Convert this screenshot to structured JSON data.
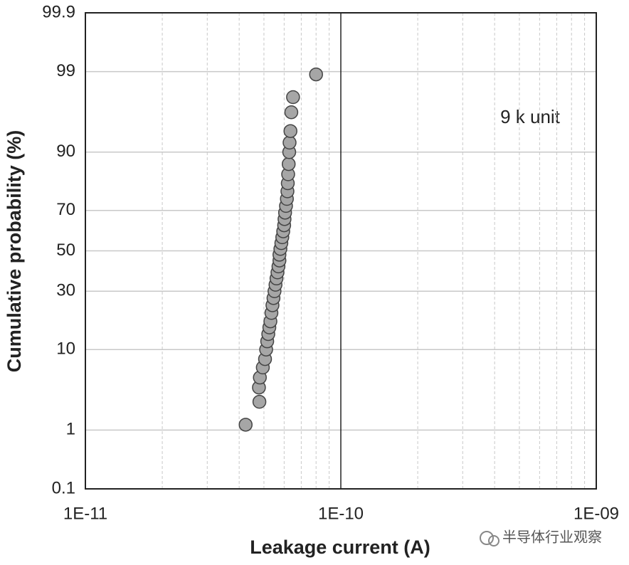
{
  "chart_data": {
    "type": "scatter",
    "xlabel": "Leakage current (A)",
    "ylabel": "Cumulative probability (%)",
    "annotation": "9 k unit",
    "watermark": "半导体行业观察",
    "xscale": "log",
    "yscale": "probability",
    "xlim": [
      1e-11,
      1e-09
    ],
    "xticks": [
      {
        "value": 1e-11,
        "label": "1E-11"
      },
      {
        "value": 1e-10,
        "label": "1E-10"
      },
      {
        "value": 1e-09,
        "label": "1E-09"
      }
    ],
    "ylim": [
      0.1,
      99.9
    ],
    "yticks": [
      0.1,
      1,
      10,
      30,
      50,
      70,
      90,
      99,
      99.9
    ],
    "grid": true,
    "color": "#a6a6a6",
    "x": [
      4.24e-11,
      4.8e-11,
      4.78e-11,
      4.82e-11,
      4.95e-11,
      5.05e-11,
      5.1e-11,
      5.15e-11,
      5.2e-11,
      5.25e-11,
      5.3e-11,
      5.35e-11,
      5.4e-11,
      5.45e-11,
      5.5e-11,
      5.55e-11,
      5.6e-11,
      5.65e-11,
      5.7e-11,
      5.75e-11,
      5.75e-11,
      5.8e-11,
      5.85e-11,
      5.9e-11,
      5.95e-11,
      6e-11,
      6.02e-11,
      6.05e-11,
      6.1e-11,
      6.15e-11,
      6.18e-11,
      6.2e-11,
      6.22e-11,
      6.25e-11,
      6.28e-11,
      6.3e-11,
      6.35e-11,
      6.4e-11,
      6.5e-11,
      8e-11
    ],
    "values": [
      1.2,
      2.5,
      3.8,
      5,
      6.5,
      8,
      10,
      12,
      14,
      16,
      18,
      21,
      24,
      27,
      30,
      33,
      36,
      39,
      42,
      45,
      48,
      51,
      54,
      57,
      60,
      63,
      66,
      69,
      72,
      75,
      78,
      81,
      84,
      87,
      90,
      92,
      94,
      96.4,
      97.7,
      98.9
    ]
  }
}
